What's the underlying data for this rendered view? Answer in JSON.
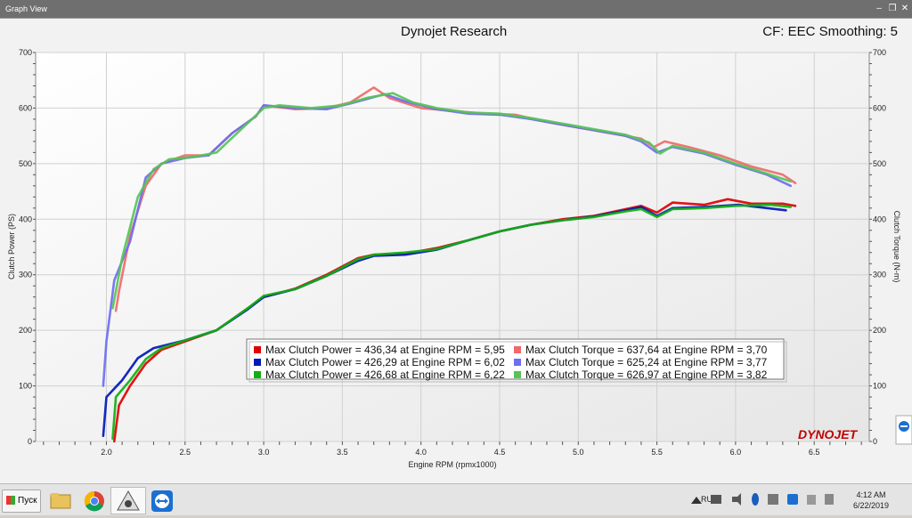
{
  "window": {
    "title": "Graph View"
  },
  "header": {
    "title": "Dynojet Research",
    "cf_label": "CF: EEC Smoothing: 5"
  },
  "brand": {
    "logo_text": "DYNOJET"
  },
  "taskbar": {
    "start_label": "Пуск",
    "language": "RU",
    "time": "4:12 AM",
    "date": "6/22/2019"
  },
  "colors": {
    "red": "#e00000",
    "blue": "#0018b8",
    "green": "#10b010",
    "red_light": "#ef6a6a",
    "blue_light": "#6e6ef0",
    "green_light": "#56c456"
  },
  "chart_data": {
    "type": "line",
    "xlabel": "Engine RPM (rpmx1000)",
    "ylabel": "Clutch Power (PS)",
    "y2label": "Clutch Torque (N-m)",
    "xlim": [
      1.55,
      6.85
    ],
    "ylim": [
      0,
      700
    ],
    "y2lim": [
      0,
      700
    ],
    "x_ticks": [
      "2.0",
      "2.5",
      "3.0",
      "3.5",
      "4.0",
      "4.5",
      "5.0",
      "5.5",
      "6.0",
      "6.5"
    ],
    "y_ticks": [
      "0",
      "100",
      "200",
      "300",
      "400",
      "500",
      "600",
      "700"
    ],
    "grid": true,
    "legend_position": "center-bottom",
    "legend": [
      "Max Clutch Power = 436,34 at Engine RPM = 5,95",
      "Max Clutch Torque = 637,64 at Engine RPM = 3,70",
      "Max Clutch Power = 426,29 at Engine RPM = 6,02",
      "Max Clutch Torque = 625,24 at Engine RPM = 3,77",
      "Max Clutch Power = 426,68 at Engine RPM = 6,22",
      "Max Clutch Torque = 626,97 at Engine RPM = 3,82"
    ],
    "series": [
      {
        "kind": "power",
        "color": "red",
        "points": [
          [
            2.05,
            0
          ],
          [
            2.08,
            65
          ],
          [
            2.15,
            100
          ],
          [
            2.25,
            140
          ],
          [
            2.35,
            165
          ],
          [
            2.5,
            180
          ],
          [
            2.7,
            200
          ],
          [
            2.9,
            240
          ],
          [
            3.0,
            260
          ],
          [
            3.2,
            275
          ],
          [
            3.4,
            300
          ],
          [
            3.6,
            330
          ],
          [
            3.7,
            336
          ],
          [
            3.9,
            338
          ],
          [
            4.1,
            348
          ],
          [
            4.3,
            362
          ],
          [
            4.5,
            378
          ],
          [
            4.7,
            390
          ],
          [
            4.9,
            400
          ],
          [
            5.1,
            406
          ],
          [
            5.3,
            418
          ],
          [
            5.4,
            424
          ],
          [
            5.5,
            412
          ],
          [
            5.6,
            430
          ],
          [
            5.8,
            426
          ],
          [
            5.95,
            436
          ],
          [
            6.1,
            428
          ],
          [
            6.3,
            428
          ],
          [
            6.38,
            424
          ]
        ]
      },
      {
        "kind": "power",
        "color": "blue",
        "points": [
          [
            1.98,
            10
          ],
          [
            2.0,
            80
          ],
          [
            2.1,
            110
          ],
          [
            2.2,
            150
          ],
          [
            2.3,
            168
          ],
          [
            2.5,
            182
          ],
          [
            2.7,
            200
          ],
          [
            2.9,
            238
          ],
          [
            3.0,
            260
          ],
          [
            3.2,
            274
          ],
          [
            3.4,
            298
          ],
          [
            3.6,
            325
          ],
          [
            3.7,
            334
          ],
          [
            3.9,
            336
          ],
          [
            4.1,
            345
          ],
          [
            4.3,
            362
          ],
          [
            4.5,
            378
          ],
          [
            4.7,
            390
          ],
          [
            4.9,
            398
          ],
          [
            5.1,
            405
          ],
          [
            5.3,
            416
          ],
          [
            5.4,
            422
          ],
          [
            5.5,
            406
          ],
          [
            5.6,
            420
          ],
          [
            5.8,
            422
          ],
          [
            6.02,
            426
          ],
          [
            6.2,
            420
          ],
          [
            6.32,
            416
          ]
        ]
      },
      {
        "kind": "power",
        "color": "green",
        "points": [
          [
            2.04,
            5
          ],
          [
            2.06,
            80
          ],
          [
            2.15,
            110
          ],
          [
            2.25,
            148
          ],
          [
            2.35,
            168
          ],
          [
            2.5,
            182
          ],
          [
            2.7,
            200
          ],
          [
            2.9,
            240
          ],
          [
            3.0,
            262
          ],
          [
            3.2,
            274
          ],
          [
            3.4,
            298
          ],
          [
            3.6,
            328
          ],
          [
            3.7,
            336
          ],
          [
            3.9,
            340
          ],
          [
            4.1,
            346
          ],
          [
            4.3,
            362
          ],
          [
            4.5,
            378
          ],
          [
            4.7,
            390
          ],
          [
            4.9,
            398
          ],
          [
            5.1,
            404
          ],
          [
            5.3,
            414
          ],
          [
            5.4,
            418
          ],
          [
            5.5,
            404
          ],
          [
            5.6,
            418
          ],
          [
            5.8,
            420
          ],
          [
            6.0,
            424
          ],
          [
            6.22,
            426
          ],
          [
            6.35,
            422
          ]
        ]
      },
      {
        "kind": "torque",
        "color": "red_light",
        "points": [
          [
            2.06,
            235
          ],
          [
            2.08,
            270
          ],
          [
            2.15,
            370
          ],
          [
            2.25,
            460
          ],
          [
            2.35,
            500
          ],
          [
            2.5,
            515
          ],
          [
            2.65,
            515
          ],
          [
            2.8,
            555
          ],
          [
            2.95,
            585
          ],
          [
            3.0,
            605
          ],
          [
            3.2,
            598
          ],
          [
            3.4,
            600
          ],
          [
            3.55,
            610
          ],
          [
            3.7,
            637
          ],
          [
            3.8,
            618
          ],
          [
            4.0,
            600
          ],
          [
            4.2,
            595
          ],
          [
            4.4,
            590
          ],
          [
            4.6,
            588
          ],
          [
            4.8,
            575
          ],
          [
            5.0,
            565
          ],
          [
            5.2,
            555
          ],
          [
            5.4,
            545
          ],
          [
            5.48,
            530
          ],
          [
            5.55,
            540
          ],
          [
            5.7,
            530
          ],
          [
            5.9,
            515
          ],
          [
            6.1,
            495
          ],
          [
            6.3,
            480
          ],
          [
            6.38,
            465
          ]
        ]
      },
      {
        "kind": "torque",
        "color": "blue_light",
        "points": [
          [
            1.98,
            100
          ],
          [
            2.0,
            180
          ],
          [
            2.05,
            290
          ],
          [
            2.15,
            360
          ],
          [
            2.25,
            475
          ],
          [
            2.35,
            500
          ],
          [
            2.5,
            510
          ],
          [
            2.65,
            515
          ],
          [
            2.8,
            555
          ],
          [
            2.95,
            585
          ],
          [
            3.0,
            605
          ],
          [
            3.2,
            600
          ],
          [
            3.4,
            598
          ],
          [
            3.55,
            608
          ],
          [
            3.77,
            625
          ],
          [
            3.9,
            612
          ],
          [
            4.1,
            598
          ],
          [
            4.3,
            590
          ],
          [
            4.5,
            588
          ],
          [
            4.7,
            580
          ],
          [
            4.9,
            570
          ],
          [
            5.1,
            560
          ],
          [
            5.3,
            550
          ],
          [
            5.4,
            540
          ],
          [
            5.5,
            520
          ],
          [
            5.6,
            530
          ],
          [
            5.8,
            518
          ],
          [
            6.0,
            498
          ],
          [
            6.2,
            480
          ],
          [
            6.35,
            460
          ]
        ]
      },
      {
        "kind": "torque",
        "color": "green_light",
        "points": [
          [
            2.04,
            240
          ],
          [
            2.1,
            330
          ],
          [
            2.2,
            440
          ],
          [
            2.3,
            490
          ],
          [
            2.4,
            508
          ],
          [
            2.55,
            512
          ],
          [
            2.7,
            520
          ],
          [
            2.85,
            560
          ],
          [
            3.0,
            600
          ],
          [
            3.1,
            605
          ],
          [
            3.3,
            600
          ],
          [
            3.5,
            605
          ],
          [
            3.65,
            618
          ],
          [
            3.82,
            627
          ],
          [
            3.95,
            610
          ],
          [
            4.1,
            600
          ],
          [
            4.3,
            592
          ],
          [
            4.5,
            590
          ],
          [
            4.7,
            582
          ],
          [
            4.9,
            572
          ],
          [
            5.1,
            562
          ],
          [
            5.3,
            552
          ],
          [
            5.45,
            538
          ],
          [
            5.52,
            518
          ],
          [
            5.6,
            532
          ],
          [
            5.8,
            520
          ],
          [
            6.0,
            500
          ],
          [
            6.2,
            482
          ],
          [
            6.35,
            468
          ]
        ]
      }
    ]
  }
}
